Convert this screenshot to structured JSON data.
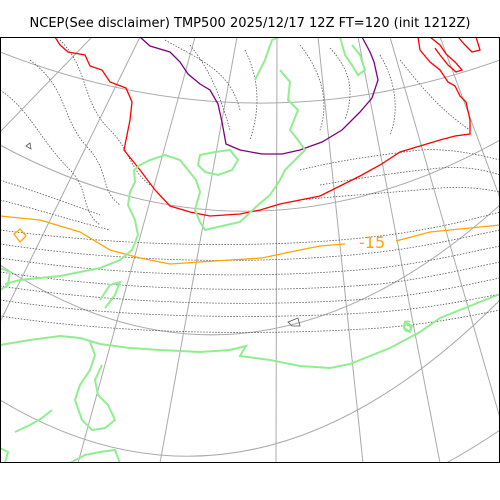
{
  "title": "NCEP(See disclaimer) TMP500 2025/12/17 12Z FT=120 (init 1212Z)",
  "contour_labels": [
    {
      "text": "-15",
      "color": "#ffa500"
    },
    {
      "text": "6",
      "color": "#90ee90"
    }
  ],
  "colors": {
    "coastline": "#90ee90",
    "graticule": "#aaaaaa",
    "isotherm_minor": "#555555",
    "isotherm_red": "#ff0000",
    "isotherm_orange": "#ffa500",
    "isotherm_purple": "#800080"
  }
}
